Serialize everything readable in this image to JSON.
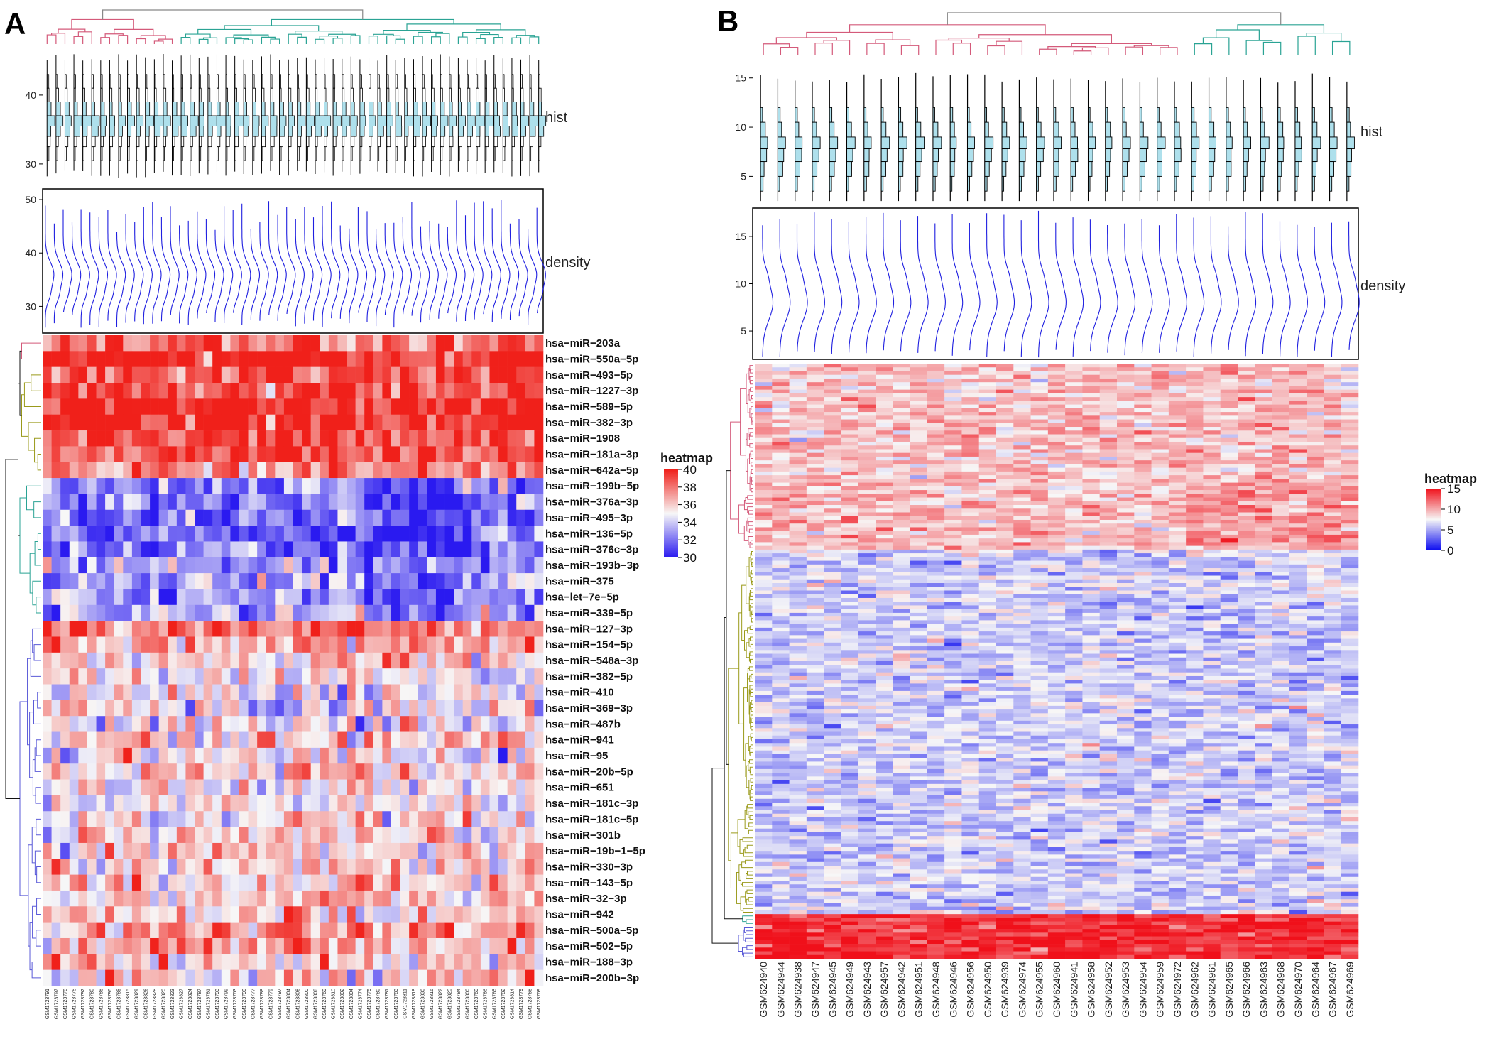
{
  "figure": {
    "panels": [
      "A",
      "B"
    ]
  },
  "chart_data": [
    {
      "panel": "A",
      "type": "heatmap",
      "tracks": [
        {
          "name": "hist",
          "ticks": [
            30,
            40
          ],
          "range": [
            27,
            47
          ]
        },
        {
          "name": "density",
          "ticks": [
            30,
            40,
            50
          ],
          "range": [
            25,
            52
          ]
        }
      ],
      "legend": {
        "title": "heatmap",
        "ticks": [
          40,
          38,
          36,
          34,
          32,
          30
        ],
        "range": [
          30,
          40
        ],
        "low_color": "#2a1af0",
        "mid_color": "#f7f7f7",
        "high_color": "#f0201a"
      },
      "rows": [
        "hsa−miR−203a",
        "hsa−miR−550a−5p",
        "hsa−miR−493−5p",
        "hsa−miR−1227−3p",
        "hsa−miR−589−5p",
        "hsa−miR−382−3p",
        "hsa−miR−1908",
        "hsa−miR−181a−3p",
        "hsa−miR−642a−5p",
        "hsa−miR−199b−5p",
        "hsa−miR−376a−3p",
        "hsa−miR−495−3p",
        "hsa−miR−136−5p",
        "hsa−miR−376c−3p",
        "hsa−miR−193b−3p",
        "hsa−miR−375",
        "hsa−let−7e−5p",
        "hsa−miR−339−5p",
        "hsa−miR−127−3p",
        "hsa−miR−154−5p",
        "hsa−miR−548a−3p",
        "hsa−miR−382−5p",
        "hsa−miR−410",
        "hsa−miR−369−3p",
        "hsa−miR−487b",
        "hsa−miR−941",
        "hsa−miR−95",
        "hsa−miR−20b−5p",
        "hsa−miR−651",
        "hsa−miR−181c−3p",
        "hsa−miR−181c−5p",
        "hsa−miR−301b",
        "hsa−miR−19b−1−5p",
        "hsa−miR−330−3p",
        "hsa−miR−143−5p",
        "hsa−miR−32−3p",
        "hsa−miR−942",
        "hsa−miR−500a−5p",
        "hsa−miR−502−5p",
        "hsa−miR−188−3p",
        "hsa−miR−200b−3p"
      ],
      "row_levels": [
        38,
        40,
        39,
        39,
        40,
        40,
        39,
        39,
        38,
        33,
        32,
        32,
        31.5,
        32,
        33,
        33,
        32.5,
        33,
        38,
        37,
        36,
        35,
        35,
        35,
        35,
        36,
        35,
        36,
        35,
        35,
        35,
        35,
        36,
        36,
        36,
        36,
        36,
        37,
        37,
        36,
        36
      ],
      "columns": [
        "GSM1723791",
        "GSM1723797",
        "GSM1723778",
        "GSM1723776",
        "GSM1723792",
        "GSM1723780",
        "GSM1723788",
        "GSM1723796",
        "GSM1723785",
        "GSM1723815",
        "GSM1723829",
        "GSM1723826",
        "GSM1723828",
        "GSM1723820",
        "GSM1723823",
        "GSM1723827",
        "GSM1723824",
        "GSM1723787",
        "GSM1723781",
        "GSM1723793",
        "GSM1723799",
        "GSM1723763",
        "GSM1723790",
        "GSM1723777",
        "GSM1723788",
        "GSM1723779",
        "GSM1723797",
        "GSM1723804",
        "GSM1723808",
        "GSM1723800",
        "GSM1723808",
        "GSM1723769",
        "GSM1723810",
        "GSM1723802",
        "GSM1723804",
        "GSM1723774",
        "GSM1723775",
        "GSM1723780",
        "GSM1723781",
        "GSM1723783",
        "GSM1723811",
        "GSM1723818",
        "GSM1723830",
        "GSM1723816",
        "GSM1723822",
        "GSM1723825",
        "GSM1723784",
        "GSM1723800",
        "GSM1723760",
        "GSM1723786",
        "GSM1723785",
        "GSM1723782",
        "GSM1723814",
        "GSM1723779",
        "GSM1723768",
        "GSM1723769"
      ]
    },
    {
      "panel": "B",
      "type": "heatmap",
      "tracks": [
        {
          "name": "hist",
          "ticks": [
            5,
            10,
            15
          ],
          "range": [
            2,
            17
          ]
        },
        {
          "name": "density",
          "ticks": [
            5,
            10,
            15
          ],
          "range": [
            2,
            18
          ]
        }
      ],
      "legend": {
        "title": "heatmap",
        "ticks": [
          15,
          10,
          5,
          0
        ],
        "range": [
          0,
          15
        ],
        "low_color": "#0a0af0",
        "mid_color": "#f7f7f7",
        "high_color": "#f0101a"
      },
      "columns": [
        "GSM624940",
        "GSM624944",
        "GSM624938",
        "GSM624947",
        "GSM624945",
        "GSM624949",
        "GSM624943",
        "GSM624957",
        "GSM624942",
        "GSM624951",
        "GSM624948",
        "GSM624946",
        "GSM624956",
        "GSM624950",
        "GSM624939",
        "GSM624974",
        "GSM624955",
        "GSM624960",
        "GSM624941",
        "GSM624958",
        "GSM624952",
        "GSM624953",
        "GSM624954",
        "GSM624959",
        "GSM624972",
        "GSM624962",
        "GSM624961",
        "GSM624965",
        "GSM624966",
        "GSM624963",
        "GSM624968",
        "GSM624970",
        "GSM624964",
        "GSM624967",
        "GSM624969"
      ],
      "row_count": 160
    }
  ]
}
